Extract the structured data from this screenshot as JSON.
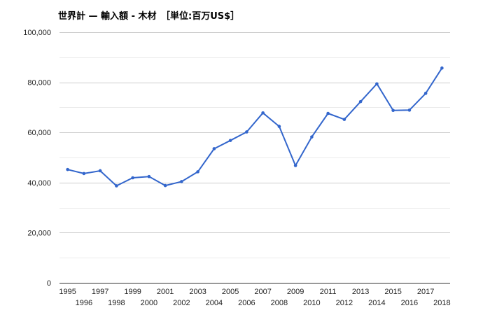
{
  "chart_data": {
    "type": "line",
    "title": "世界計 — 輸入額 - 木材　［単位:百万US$］",
    "xlabel": "",
    "ylabel": "",
    "x": [
      "1995",
      "1996",
      "1997",
      "1998",
      "1999",
      "2000",
      "2001",
      "2002",
      "2003",
      "2004",
      "2005",
      "2006",
      "2007",
      "2008",
      "2009",
      "2010",
      "2011",
      "2012",
      "2013",
      "2014",
      "2015",
      "2016",
      "2017",
      "2018"
    ],
    "series": [
      {
        "values": [
          45200,
          43600,
          44700,
          38700,
          41900,
          42400,
          38800,
          40400,
          44300,
          53500,
          56800,
          60200,
          67800,
          62400,
          46800,
          58200,
          67600,
          65200,
          72300,
          79400,
          68800,
          68900,
          75600,
          85700
        ]
      }
    ],
    "ylim": [
      0,
      100000
    ],
    "yticks": [
      0,
      20000,
      40000,
      60000,
      80000,
      100000
    ],
    "ytick_labels": [
      "0",
      "20,000",
      "40,000",
      "60,000",
      "80,000",
      "100,000"
    ],
    "grid": true,
    "legend": "none",
    "colors": {
      "line": "#3366cc",
      "grid": "#cccccc",
      "minor_grid": "#ebebeb",
      "axis": "#333333"
    }
  }
}
